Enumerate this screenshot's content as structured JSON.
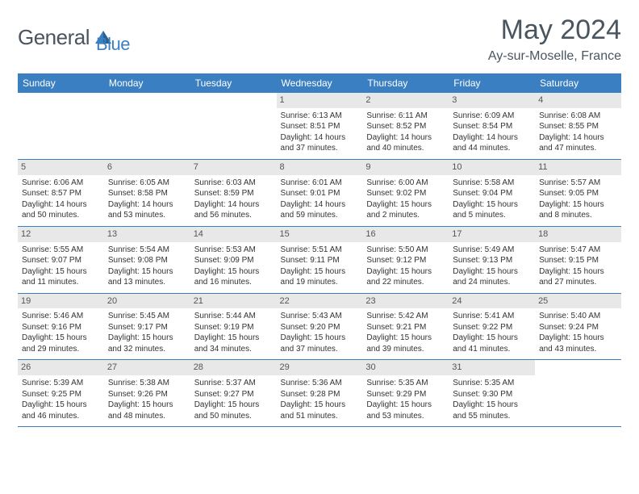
{
  "logo": {
    "text1": "General",
    "text2": "Blue"
  },
  "title": "May 2024",
  "location": "Ay-sur-Moselle, France",
  "colors": {
    "header_bg": "#3a7fc1",
    "header_text": "#ffffff",
    "daynum_bg": "#e8e8e8",
    "border": "#3a7fc1",
    "logo_gray": "#4a5560",
    "logo_blue": "#3a7fc1"
  },
  "weekdays": [
    "Sunday",
    "Monday",
    "Tuesday",
    "Wednesday",
    "Thursday",
    "Friday",
    "Saturday"
  ],
  "weeks": [
    [
      null,
      null,
      null,
      {
        "n": "1",
        "sr": "6:13 AM",
        "ss": "8:51 PM",
        "dl": "14 hours and 37 minutes."
      },
      {
        "n": "2",
        "sr": "6:11 AM",
        "ss": "8:52 PM",
        "dl": "14 hours and 40 minutes."
      },
      {
        "n": "3",
        "sr": "6:09 AM",
        "ss": "8:54 PM",
        "dl": "14 hours and 44 minutes."
      },
      {
        "n": "4",
        "sr": "6:08 AM",
        "ss": "8:55 PM",
        "dl": "14 hours and 47 minutes."
      }
    ],
    [
      {
        "n": "5",
        "sr": "6:06 AM",
        "ss": "8:57 PM",
        "dl": "14 hours and 50 minutes."
      },
      {
        "n": "6",
        "sr": "6:05 AM",
        "ss": "8:58 PM",
        "dl": "14 hours and 53 minutes."
      },
      {
        "n": "7",
        "sr": "6:03 AM",
        "ss": "8:59 PM",
        "dl": "14 hours and 56 minutes."
      },
      {
        "n": "8",
        "sr": "6:01 AM",
        "ss": "9:01 PM",
        "dl": "14 hours and 59 minutes."
      },
      {
        "n": "9",
        "sr": "6:00 AM",
        "ss": "9:02 PM",
        "dl": "15 hours and 2 minutes."
      },
      {
        "n": "10",
        "sr": "5:58 AM",
        "ss": "9:04 PM",
        "dl": "15 hours and 5 minutes."
      },
      {
        "n": "11",
        "sr": "5:57 AM",
        "ss": "9:05 PM",
        "dl": "15 hours and 8 minutes."
      }
    ],
    [
      {
        "n": "12",
        "sr": "5:55 AM",
        "ss": "9:07 PM",
        "dl": "15 hours and 11 minutes."
      },
      {
        "n": "13",
        "sr": "5:54 AM",
        "ss": "9:08 PM",
        "dl": "15 hours and 13 minutes."
      },
      {
        "n": "14",
        "sr": "5:53 AM",
        "ss": "9:09 PM",
        "dl": "15 hours and 16 minutes."
      },
      {
        "n": "15",
        "sr": "5:51 AM",
        "ss": "9:11 PM",
        "dl": "15 hours and 19 minutes."
      },
      {
        "n": "16",
        "sr": "5:50 AM",
        "ss": "9:12 PM",
        "dl": "15 hours and 22 minutes."
      },
      {
        "n": "17",
        "sr": "5:49 AM",
        "ss": "9:13 PM",
        "dl": "15 hours and 24 minutes."
      },
      {
        "n": "18",
        "sr": "5:47 AM",
        "ss": "9:15 PM",
        "dl": "15 hours and 27 minutes."
      }
    ],
    [
      {
        "n": "19",
        "sr": "5:46 AM",
        "ss": "9:16 PM",
        "dl": "15 hours and 29 minutes."
      },
      {
        "n": "20",
        "sr": "5:45 AM",
        "ss": "9:17 PM",
        "dl": "15 hours and 32 minutes."
      },
      {
        "n": "21",
        "sr": "5:44 AM",
        "ss": "9:19 PM",
        "dl": "15 hours and 34 minutes."
      },
      {
        "n": "22",
        "sr": "5:43 AM",
        "ss": "9:20 PM",
        "dl": "15 hours and 37 minutes."
      },
      {
        "n": "23",
        "sr": "5:42 AM",
        "ss": "9:21 PM",
        "dl": "15 hours and 39 minutes."
      },
      {
        "n": "24",
        "sr": "5:41 AM",
        "ss": "9:22 PM",
        "dl": "15 hours and 41 minutes."
      },
      {
        "n": "25",
        "sr": "5:40 AM",
        "ss": "9:24 PM",
        "dl": "15 hours and 43 minutes."
      }
    ],
    [
      {
        "n": "26",
        "sr": "5:39 AM",
        "ss": "9:25 PM",
        "dl": "15 hours and 46 minutes."
      },
      {
        "n": "27",
        "sr": "5:38 AM",
        "ss": "9:26 PM",
        "dl": "15 hours and 48 minutes."
      },
      {
        "n": "28",
        "sr": "5:37 AM",
        "ss": "9:27 PM",
        "dl": "15 hours and 50 minutes."
      },
      {
        "n": "29",
        "sr": "5:36 AM",
        "ss": "9:28 PM",
        "dl": "15 hours and 51 minutes."
      },
      {
        "n": "30",
        "sr": "5:35 AM",
        "ss": "9:29 PM",
        "dl": "15 hours and 53 minutes."
      },
      {
        "n": "31",
        "sr": "5:35 AM",
        "ss": "9:30 PM",
        "dl": "15 hours and 55 minutes."
      },
      null
    ]
  ],
  "labels": {
    "sunrise": "Sunrise:",
    "sunset": "Sunset:",
    "daylight": "Daylight:"
  }
}
